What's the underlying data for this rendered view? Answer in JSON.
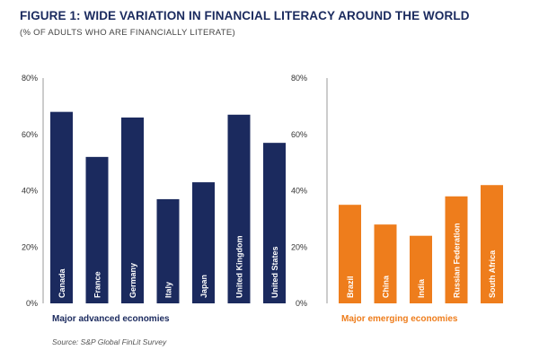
{
  "figure": {
    "title": "FIGURE 1: WIDE VARIATION IN FINANCIAL LITERACY AROUND THE WORLD",
    "subtitle": "(% OF ADULTS WHO ARE FINANCIALLY LITERATE)",
    "source": "Source: S&P Global FinLit Survey"
  },
  "chart_data": [
    {
      "type": "bar",
      "title": "",
      "group_label": "Major advanced economies",
      "color": "#1b2a5e",
      "categories": [
        "Canada",
        "France",
        "Germany",
        "Italy",
        "Japan",
        "United Kingdom",
        "United States"
      ],
      "values": [
        68,
        52,
        66,
        37,
        43,
        67,
        57
      ],
      "ylim": [
        0,
        80
      ],
      "yticks": [
        "80%",
        "60%",
        "40%",
        "20%",
        "0%"
      ],
      "grid": false
    },
    {
      "type": "bar",
      "title": "",
      "group_label": "Major emerging economies",
      "color": "#ee7d1c",
      "categories": [
        "Brazil",
        "China",
        "India",
        "Russian Federation",
        "South Africa"
      ],
      "values": [
        35,
        28,
        24,
        38,
        42
      ],
      "ylim": [
        0,
        80
      ],
      "yticks": [
        "80%",
        "60%",
        "40%",
        "20%",
        "0%"
      ],
      "grid": false
    }
  ]
}
